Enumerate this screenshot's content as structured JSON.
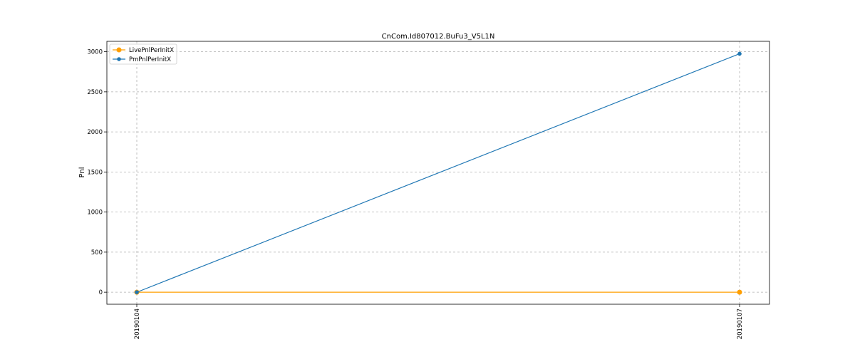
{
  "chart_data": {
    "type": "line",
    "title": "CnCom.Id807012.BuFu3_V5L1N",
    "xlabel": "",
    "ylabel": "Pnl",
    "categories": [
      "20190104",
      "20190107"
    ],
    "ylim": [
      -150,
      3130
    ],
    "yticks": [
      0,
      500,
      1000,
      1500,
      2000,
      2500,
      3000
    ],
    "grid": true,
    "legend_position": "top-left",
    "series": [
      {
        "name": "LivePnlPerInitX",
        "values": [
          0,
          0
        ],
        "color": "#ff9f00"
      },
      {
        "name": "PmPnlPerInitX",
        "values": [
          0,
          2975
        ],
        "color": "#1f77b4"
      }
    ]
  }
}
